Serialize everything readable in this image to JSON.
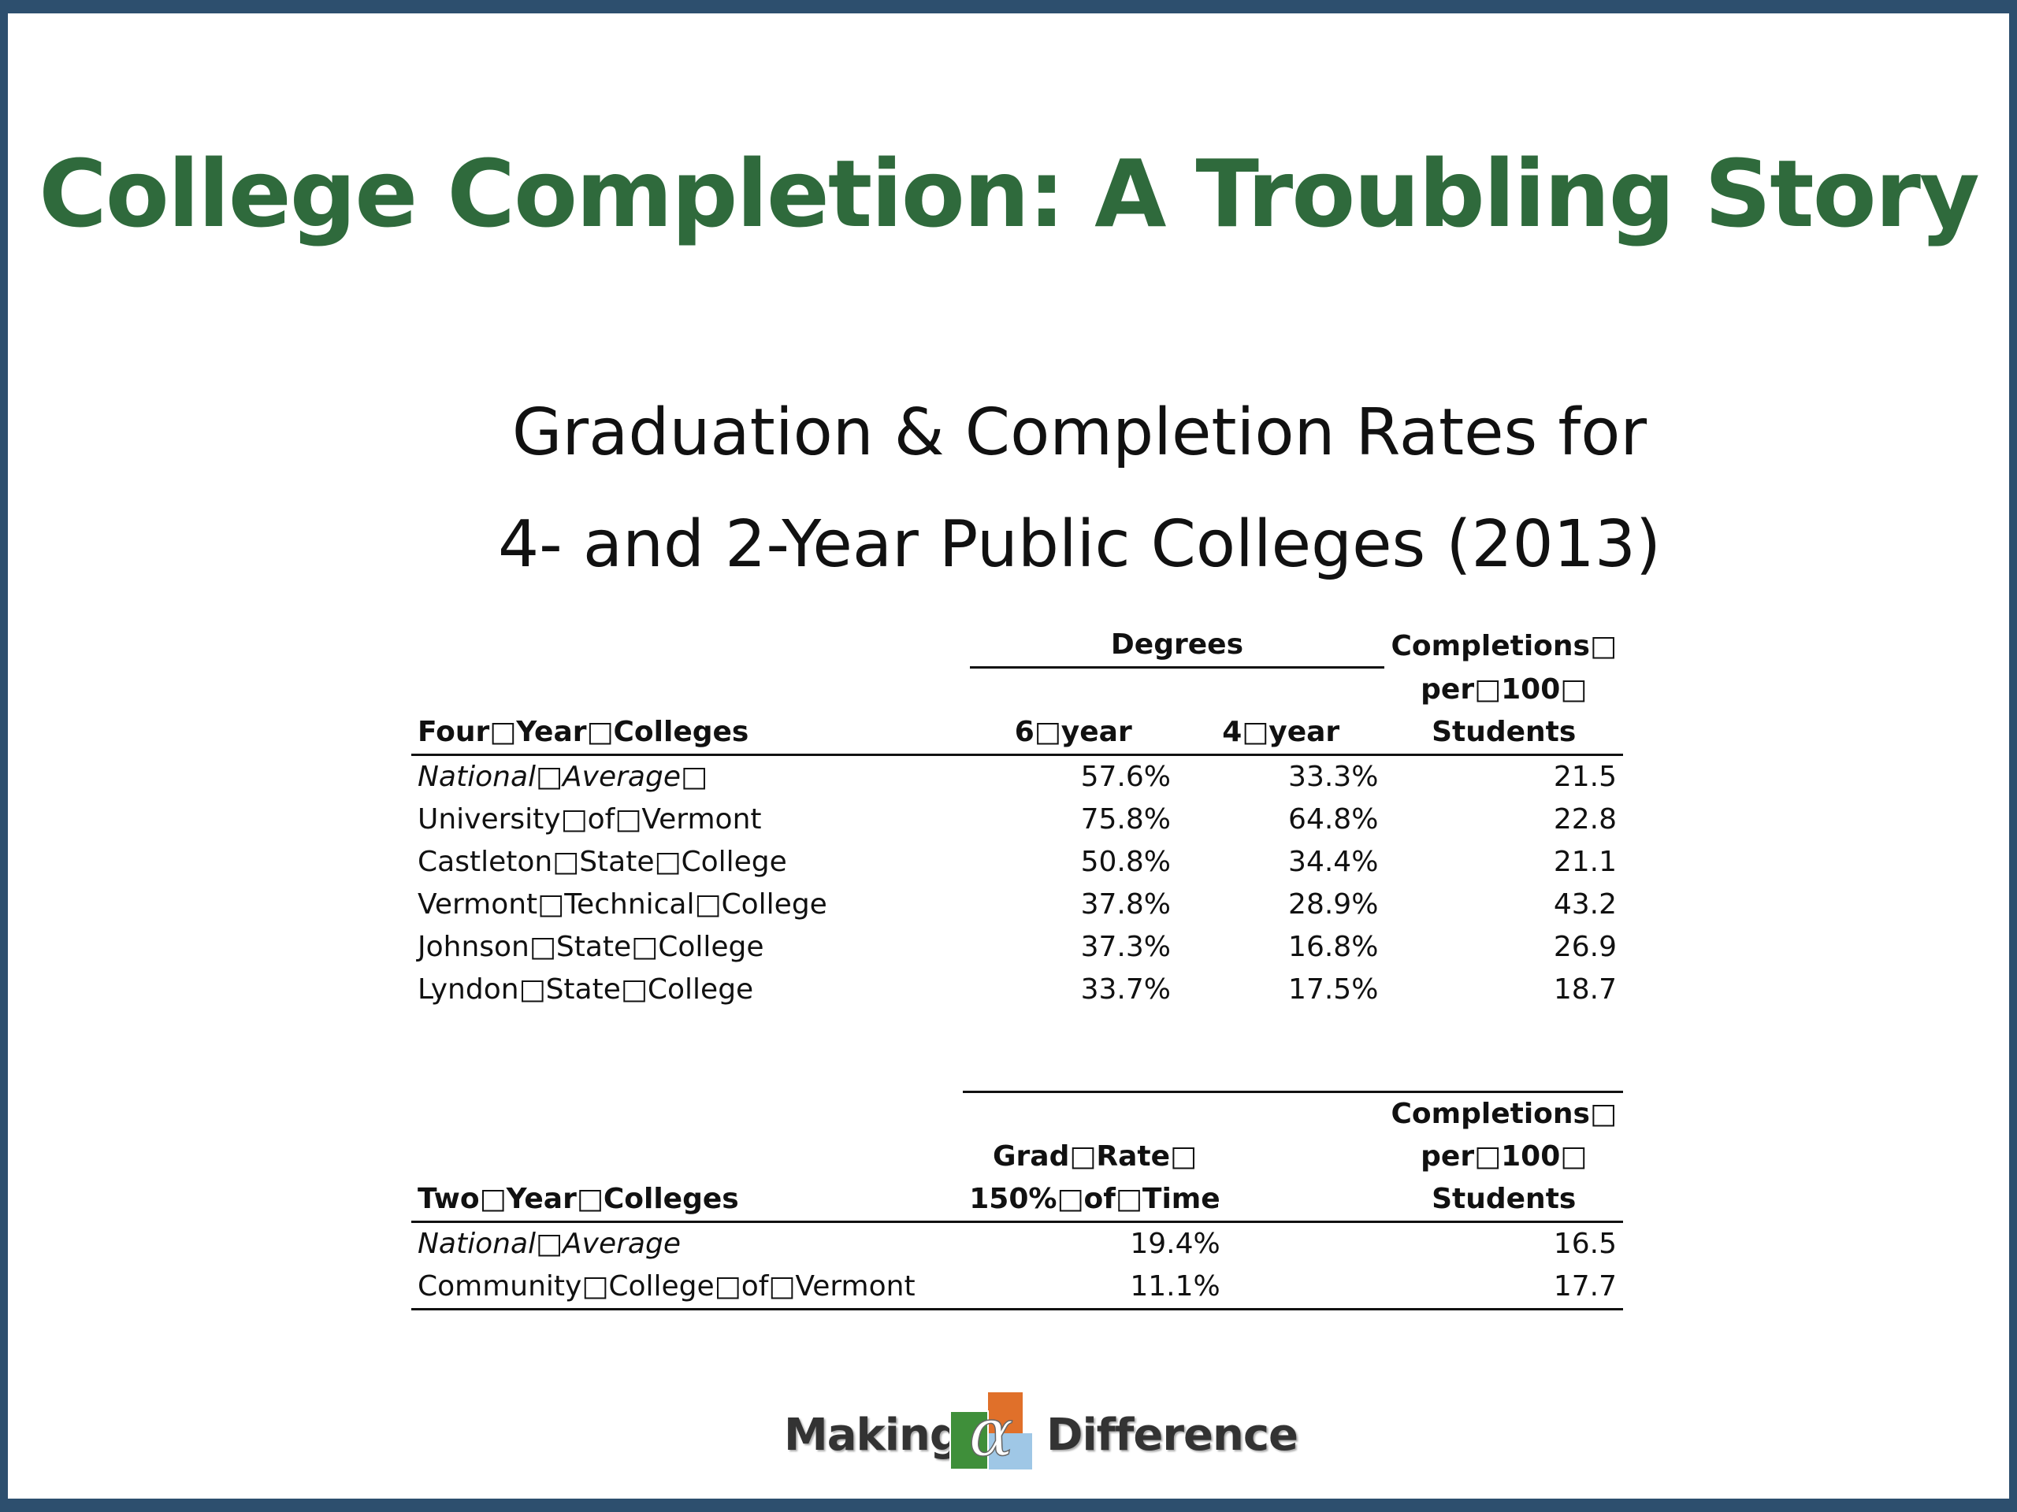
{
  "slide": {
    "title": "College Completion: A Troubling Story",
    "subtitle_line1": "Graduation & Completion Rates for",
    "subtitle_line2": "4- and 2-Year Public Colleges (2013)"
  },
  "four_year": {
    "group_header": "Degrees",
    "col_college": "Four□Year□Colleges",
    "col_6year": "6□year",
    "col_4year": "4□year",
    "col_completions_line1": "Completions□",
    "col_completions_line2": "per□100□",
    "col_completions_line3": "Students",
    "rows": [
      {
        "name": "National□Average□",
        "six": "57.6%",
        "four": "33.3%",
        "comp": "21.5"
      },
      {
        "name": "University□of□Vermont",
        "six": "75.8%",
        "four": "64.8%",
        "comp": "22.8"
      },
      {
        "name": "Castleton□State□College",
        "six": "50.8%",
        "four": "34.4%",
        "comp": "21.1"
      },
      {
        "name": "Vermont□Technical□College",
        "six": "37.8%",
        "four": "28.9%",
        "comp": "43.2"
      },
      {
        "name": "Johnson□State□College",
        "six": "37.3%",
        "four": "16.8%",
        "comp": "26.9"
      },
      {
        "name": "Lyndon□State□College",
        "six": "33.7%",
        "four": "17.5%",
        "comp": "18.7"
      }
    ]
  },
  "two_year": {
    "col_college": "Two□Year□Colleges",
    "col_grad_line1": "Grad□Rate□",
    "col_grad_line2": "150%□of□Time",
    "col_completions_line1": "Completions□",
    "col_completions_line2": "per□100□",
    "col_completions_line3": "Students",
    "rows": [
      {
        "name": "National□Average",
        "grad": "19.4%",
        "comp": "16.5"
      },
      {
        "name": "Community□College□of□Vermont",
        "grad": "11.1%",
        "comp": "17.7"
      }
    ]
  },
  "logo": {
    "word_left": "Making",
    "word_right": "Difference",
    "colors": {
      "green": "#3f8f3a",
      "orange": "#e0702a",
      "blue": "#9fc7e6"
    }
  }
}
